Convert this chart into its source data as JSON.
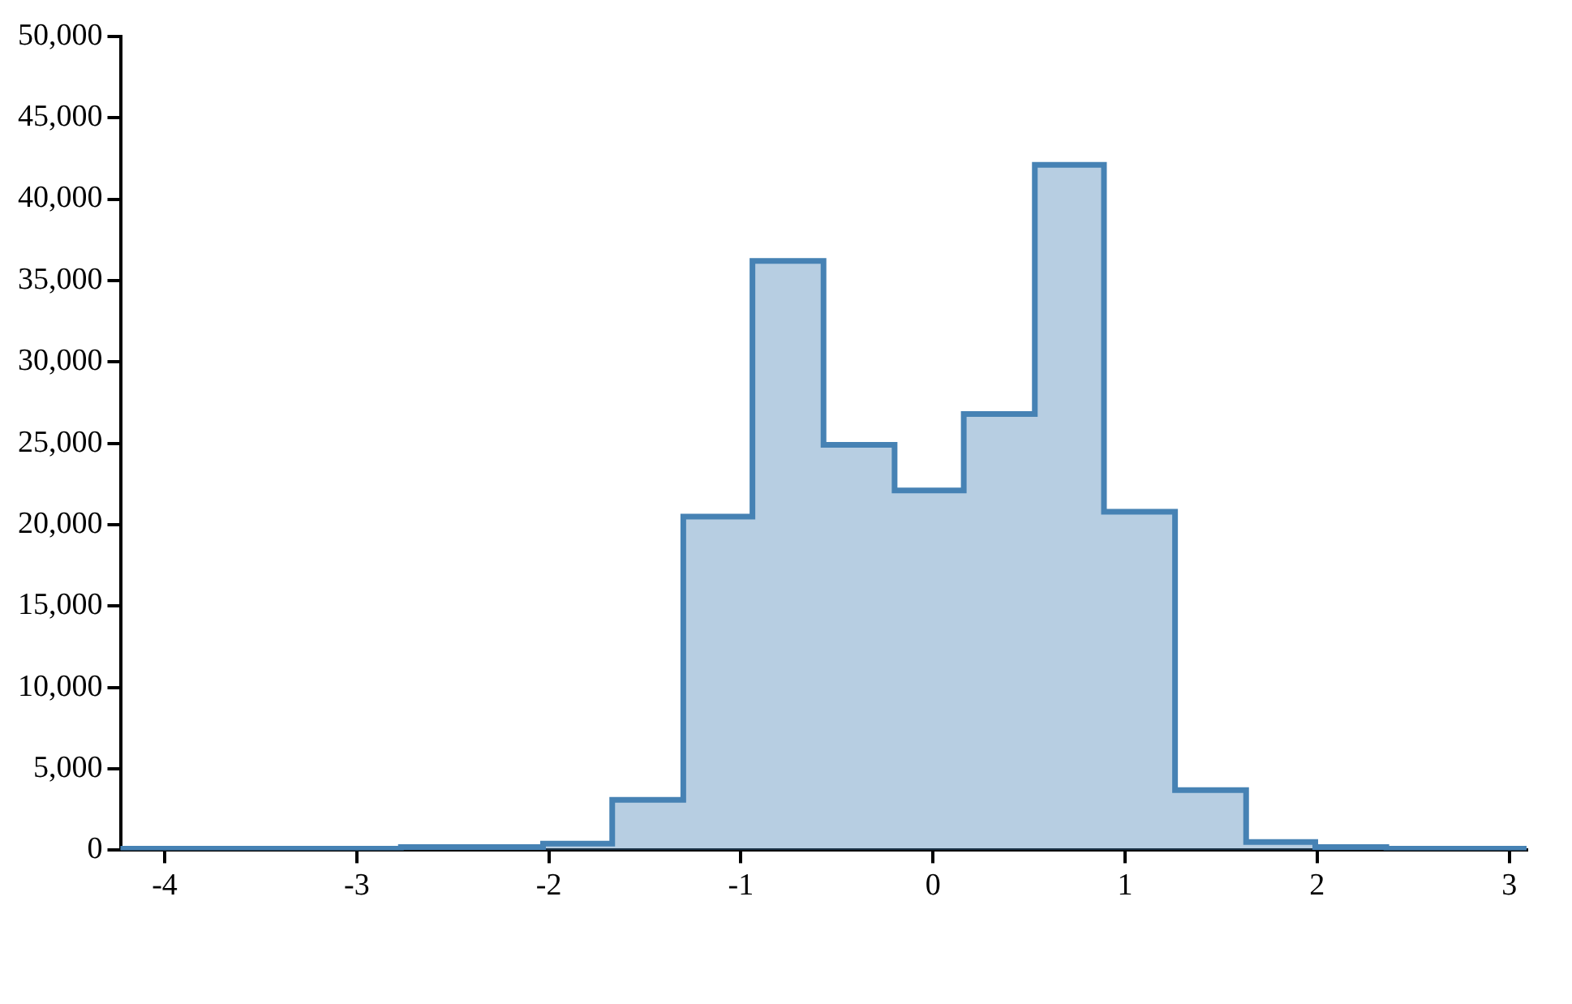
{
  "chart_data": {
    "type": "histogram",
    "bins": [
      -4.23,
      -3.86,
      -3.5,
      -3.13,
      -2.77,
      -2.4,
      -2.03,
      -1.67,
      -1.3,
      -0.94,
      -0.57,
      -0.2,
      0.16,
      0.53,
      0.89,
      1.26,
      1.63,
      1.99,
      2.36,
      2.72,
      3.09
    ],
    "values": [
      100,
      100,
      100,
      100,
      200,
      200,
      400,
      3100,
      20500,
      36200,
      24900,
      22100,
      26800,
      42100,
      20800,
      3700,
      500,
      200,
      100,
      100
    ],
    "color": "#4682b4",
    "xlim": [
      -4.23,
      3.09
    ],
    "xticks": [
      -4,
      -3,
      -2,
      -1,
      0,
      1,
      2,
      3
    ],
    "ylim": [
      0,
      50000
    ],
    "yticks": [
      0,
      {
        "value": 5000,
        "label": "5,000"
      },
      {
        "value": 10000,
        "label": "10,000"
      },
      {
        "value": 15000,
        "label": "15,000"
      },
      {
        "value": 20000,
        "label": "20,000"
      },
      {
        "value": 25000,
        "label": "25,000"
      },
      {
        "value": 30000,
        "label": "30,000"
      },
      {
        "value": 35000,
        "label": "35,000"
      },
      {
        "value": 40000,
        "label": "40,000"
      },
      {
        "value": 45000,
        "label": "45,000"
      },
      {
        "value": 50000,
        "label": "50,000"
      }
    ],
    "grid": false,
    "legend": false
  }
}
